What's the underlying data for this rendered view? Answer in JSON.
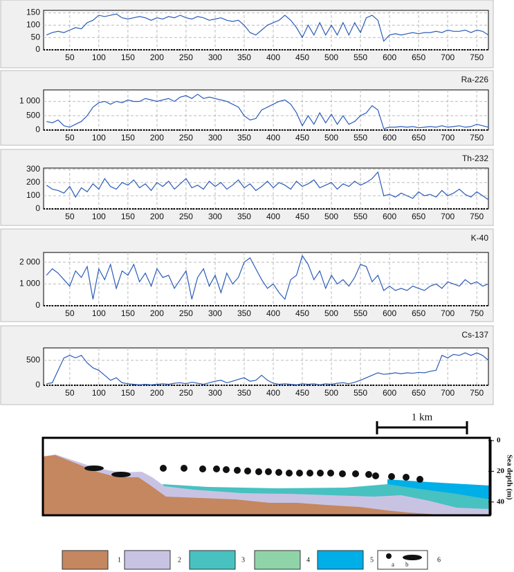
{
  "chart_data": [
    {
      "type": "line",
      "color": "#2a5bb8",
      "x": [
        10,
        20,
        30,
        40,
        50,
        60,
        70,
        80,
        90,
        100,
        110,
        120,
        130,
        140,
        150,
        160,
        170,
        180,
        190,
        200,
        210,
        220,
        230,
        240,
        250,
        260,
        270,
        280,
        290,
        300,
        310,
        320,
        330,
        340,
        350,
        360,
        370,
        380,
        390,
        400,
        410,
        420,
        430,
        440,
        450,
        460,
        470,
        480,
        490,
        500,
        510,
        520,
        530,
        540,
        550,
        560,
        570,
        580,
        590,
        600,
        610,
        620,
        630,
        640,
        650,
        660,
        670,
        680,
        690,
        700,
        710,
        720,
        730,
        740,
        750,
        760,
        770
      ],
      "values": [
        60,
        70,
        75,
        70,
        80,
        90,
        85,
        110,
        120,
        140,
        135,
        140,
        145,
        130,
        125,
        130,
        135,
        130,
        120,
        130,
        125,
        135,
        130,
        140,
        130,
        125,
        135,
        130,
        120,
        125,
        130,
        120,
        115,
        120,
        100,
        70,
        60,
        80,
        100,
        110,
        120,
        140,
        120,
        90,
        50,
        100,
        60,
        110,
        60,
        100,
        60,
        110,
        60,
        110,
        70,
        130,
        140,
        120,
        35,
        60,
        65,
        60,
        65,
        70,
        65,
        70,
        70,
        75,
        70,
        80,
        75,
        75,
        80,
        70,
        80,
        75,
        60
      ],
      "xlim": [
        5,
        770
      ],
      "xticks": [
        50,
        100,
        150,
        200,
        250,
        300,
        350,
        400,
        450,
        500,
        550,
        600,
        650,
        700,
        750
      ],
      "ylim": [
        0,
        160
      ],
      "yticks": [
        0,
        50,
        100,
        150
      ],
      "grid": true
    },
    {
      "type": "line",
      "title": "Ra-226",
      "color": "#2a5bb8",
      "x": [
        10,
        20,
        30,
        40,
        50,
        60,
        70,
        80,
        90,
        100,
        110,
        120,
        130,
        140,
        150,
        160,
        170,
        180,
        190,
        200,
        210,
        220,
        230,
        240,
        250,
        260,
        270,
        280,
        290,
        300,
        310,
        320,
        330,
        340,
        350,
        360,
        370,
        380,
        390,
        400,
        410,
        420,
        430,
        440,
        450,
        460,
        470,
        480,
        490,
        500,
        510,
        520,
        530,
        540,
        550,
        560,
        570,
        580,
        590,
        600,
        610,
        620,
        630,
        640,
        650,
        660,
        670,
        680,
        690,
        700,
        710,
        720,
        730,
        740,
        750,
        760,
        770
      ],
      "values": [
        300,
        250,
        350,
        150,
        100,
        200,
        300,
        500,
        800,
        950,
        1000,
        900,
        1000,
        950,
        1050,
        1000,
        1000,
        1100,
        1050,
        1000,
        1050,
        1100,
        1000,
        1150,
        1200,
        1100,
        1250,
        1100,
        1150,
        1100,
        1050,
        1000,
        900,
        800,
        500,
        350,
        400,
        700,
        800,
        900,
        1000,
        1050,
        900,
        600,
        150,
        500,
        200,
        600,
        250,
        550,
        200,
        500,
        200,
        300,
        500,
        600,
        850,
        700,
        50,
        100,
        100,
        120,
        100,
        120,
        80,
        100,
        120,
        100,
        150,
        100,
        120,
        150,
        100,
        120,
        200,
        150,
        100
      ],
      "xlim": [
        5,
        770
      ],
      "xticks": [
        50,
        100,
        150,
        200,
        250,
        300,
        350,
        400,
        450,
        500,
        550,
        600,
        650,
        700,
        750
      ],
      "ylim": [
        0,
        1400
      ],
      "yticks": [
        0,
        500,
        {
          "value": 1000,
          "label": "1 000"
        }
      ],
      "grid": true
    },
    {
      "type": "line",
      "title": "Th-232",
      "color": "#2a5bb8",
      "x": [
        10,
        20,
        30,
        40,
        50,
        60,
        70,
        80,
        90,
        100,
        110,
        120,
        130,
        140,
        150,
        160,
        170,
        180,
        190,
        200,
        210,
        220,
        230,
        240,
        250,
        260,
        270,
        280,
        290,
        300,
        310,
        320,
        330,
        340,
        350,
        360,
        370,
        380,
        390,
        400,
        410,
        420,
        430,
        440,
        450,
        460,
        470,
        480,
        490,
        500,
        510,
        520,
        530,
        540,
        550,
        560,
        570,
        580,
        590,
        600,
        610,
        620,
        630,
        640,
        650,
        660,
        670,
        680,
        690,
        700,
        710,
        720,
        730,
        740,
        750,
        760,
        770
      ],
      "values": [
        180,
        150,
        140,
        120,
        170,
        90,
        160,
        130,
        190,
        150,
        230,
        170,
        150,
        200,
        180,
        220,
        160,
        190,
        140,
        200,
        170,
        210,
        150,
        190,
        230,
        160,
        180,
        150,
        210,
        170,
        200,
        150,
        180,
        220,
        160,
        190,
        140,
        170,
        210,
        160,
        200,
        180,
        150,
        210,
        170,
        190,
        220,
        160,
        180,
        200,
        150,
        190,
        170,
        210,
        180,
        200,
        230,
        280,
        100,
        110,
        90,
        120,
        100,
        80,
        130,
        100,
        110,
        90,
        140,
        100,
        120,
        150,
        110,
        90,
        130,
        100,
        70
      ],
      "xlim": [
        5,
        770
      ],
      "xticks": [
        50,
        100,
        150,
        200,
        250,
        300,
        350,
        400,
        450,
        500,
        550,
        600,
        650,
        700,
        750
      ],
      "ylim": [
        0,
        310
      ],
      "yticks": [
        0,
        100,
        200,
        300
      ],
      "grid": true
    },
    {
      "type": "line",
      "title": "K-40",
      "color": "#2a5bb8",
      "x": [
        10,
        20,
        30,
        40,
        50,
        60,
        70,
        80,
        90,
        100,
        110,
        120,
        130,
        140,
        150,
        160,
        170,
        180,
        190,
        200,
        210,
        220,
        230,
        240,
        250,
        260,
        270,
        280,
        290,
        300,
        310,
        320,
        330,
        340,
        350,
        360,
        370,
        380,
        390,
        400,
        410,
        420,
        430,
        440,
        450,
        460,
        470,
        480,
        490,
        500,
        510,
        520,
        530,
        540,
        550,
        560,
        570,
        580,
        590,
        600,
        610,
        620,
        630,
        640,
        650,
        660,
        670,
        680,
        690,
        700,
        710,
        720,
        730,
        740,
        750,
        760,
        770
      ],
      "values": [
        1400,
        1700,
        1500,
        1200,
        900,
        1600,
        1300,
        1800,
        300,
        1700,
        1200,
        1900,
        800,
        1600,
        1400,
        1900,
        1100,
        1500,
        900,
        1700,
        1300,
        1400,
        800,
        1200,
        1600,
        300,
        1300,
        1700,
        900,
        1400,
        600,
        1500,
        1000,
        1300,
        2000,
        2200,
        1700,
        1200,
        800,
        1000,
        600,
        300,
        1200,
        1400,
        2300,
        1900,
        1200,
        1600,
        800,
        1400,
        1000,
        1200,
        900,
        1300,
        1900,
        1800,
        1100,
        1400,
        700,
        900,
        700,
        800,
        700,
        900,
        800,
        700,
        900,
        1000,
        800,
        1100,
        1000,
        900,
        1200,
        1000,
        1100,
        900,
        1000
      ],
      "xlim": [
        5,
        770
      ],
      "xticks": [
        50,
        100,
        150,
        200,
        250,
        300,
        350,
        400,
        450,
        500,
        550,
        600,
        650,
        700,
        750
      ],
      "ylim": [
        0,
        2450
      ],
      "yticks": [
        0,
        {
          "value": 1000,
          "label": "1 000"
        },
        {
          "value": 2000,
          "label": "2 000"
        }
      ],
      "grid": true
    },
    {
      "type": "line",
      "title": "Cs-137",
      "color": "#2a5bb8",
      "x": [
        10,
        20,
        30,
        40,
        50,
        60,
        70,
        80,
        90,
        100,
        110,
        120,
        130,
        140,
        150,
        160,
        170,
        180,
        190,
        200,
        210,
        220,
        230,
        240,
        250,
        260,
        270,
        280,
        290,
        300,
        310,
        320,
        330,
        340,
        350,
        360,
        370,
        380,
        390,
        400,
        410,
        420,
        430,
        440,
        450,
        460,
        470,
        480,
        490,
        500,
        510,
        520,
        530,
        540,
        550,
        560,
        570,
        580,
        590,
        600,
        610,
        620,
        630,
        640,
        650,
        660,
        670,
        680,
        690,
        700,
        710,
        720,
        730,
        740,
        750,
        760,
        770
      ],
      "values": [
        30,
        50,
        300,
        550,
        600,
        550,
        600,
        450,
        350,
        300,
        200,
        100,
        150,
        50,
        30,
        20,
        10,
        20,
        10,
        20,
        30,
        20,
        40,
        50,
        30,
        60,
        40,
        20,
        50,
        80,
        100,
        50,
        80,
        120,
        150,
        80,
        100,
        200,
        100,
        40,
        20,
        30,
        20,
        10,
        30,
        20,
        30,
        10,
        30,
        20,
        40,
        50,
        30,
        60,
        100,
        150,
        200,
        250,
        220,
        230,
        250,
        230,
        250,
        240,
        260,
        250,
        280,
        300,
        600,
        550,
        620,
        600,
        650,
        600,
        650,
        600,
        500
      ],
      "xlim": [
        5,
        770
      ],
      "xticks": [
        50,
        100,
        150,
        200,
        250,
        300,
        350,
        400,
        450,
        500,
        550,
        600,
        650,
        700,
        750
      ],
      "ylim": [
        0,
        750
      ],
      "yticks": [
        0,
        500
      ],
      "grid": true
    }
  ],
  "diagram": {
    "scale_label": "1 km",
    "depth_label": "Sea depth (m)",
    "depth_ticks": [
      0,
      20,
      40
    ],
    "legend": [
      "1",
      "2",
      "3",
      "4",
      "5",
      "6"
    ],
    "legend_sub": [
      "a",
      "b"
    ]
  }
}
